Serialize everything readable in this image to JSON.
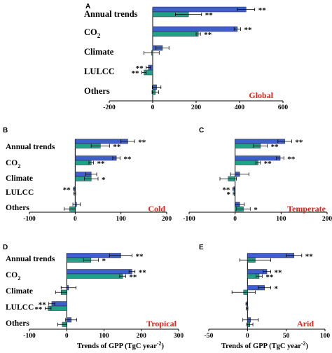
{
  "chart_data": [
    {
      "type": "bar",
      "panel_label": "A",
      "region": "Global",
      "categories": [
        "Annual trends",
        "CO2",
        "Climate",
        "LULCC",
        "Others"
      ],
      "series_colors": [
        "#3f5fcf",
        "#22a08a"
      ],
      "xlim": [
        -200,
        600
      ],
      "xticks": [
        "-200",
        "0",
        "200",
        "400",
        "600"
      ],
      "xlabel": "",
      "series": [
        {
          "values": [
            430,
            390,
            45,
            -20,
            18
          ],
          "err": [
            40,
            15,
            30,
            10,
            20
          ],
          "sig": [
            "**",
            "**",
            "",
            "**",
            ""
          ]
        },
        {
          "values": [
            165,
            210,
            -5,
            -40,
            12
          ],
          "err": [
            60,
            10,
            35,
            10,
            15
          ],
          "sig": [
            "**",
            "**",
            "",
            "**",
            ""
          ]
        }
      ]
    },
    {
      "type": "bar",
      "panel_label": "B",
      "region": "Cold",
      "categories": [
        "Annual trends",
        "CO2",
        "Climate",
        "LULCC",
        "Others"
      ],
      "series_colors": [
        "#3f5fcf",
        "#22a08a"
      ],
      "xlim": [
        -100,
        200
      ],
      "xticks": [
        "-100",
        "0",
        "100",
        "200"
      ],
      "xlabel": "",
      "series": [
        {
          "values": [
            115,
            90,
            35,
            -2,
            3
          ],
          "err": [
            15,
            8,
            12,
            2,
            8
          ],
          "sig": [
            "**",
            "**",
            "",
            "**",
            ""
          ]
        },
        {
          "values": [
            55,
            35,
            35,
            -1,
            -12
          ],
          "err": [
            20,
            5,
            15,
            2,
            12
          ],
          "sig": [
            "**",
            "**",
            "*",
            "",
            ""
          ]
        }
      ]
    },
    {
      "type": "bar",
      "panel_label": "C",
      "region": "Temperate",
      "categories": [
        "Annual trends",
        "CO2",
        "Climate",
        "LULCC",
        "Others"
      ],
      "series_colors": [
        "#3f5fcf",
        "#22a08a"
      ],
      "xlim": [
        -100,
        200
      ],
      "xticks": [
        "-100",
        "0",
        "100",
        "200"
      ],
      "xlabel": "",
      "series": [
        {
          "values": [
            108,
            98,
            10,
            -3,
            10
          ],
          "err": [
            15,
            8,
            20,
            2,
            10
          ],
          "sig": [
            "**",
            "**",
            "",
            "**",
            ""
          ]
        },
        {
          "values": [
            55,
            50,
            -15,
            -2,
            18
          ],
          "err": [
            15,
            5,
            18,
            2,
            15
          ],
          "sig": [
            "**",
            "**",
            "",
            "*",
            "*"
          ]
        }
      ]
    },
    {
      "type": "bar",
      "panel_label": "D",
      "region": "Tropical",
      "categories": [
        "Annual trends",
        "CO2",
        "Climate",
        "LULCC",
        "Others"
      ],
      "series_colors": [
        "#3f5fcf",
        "#22a08a"
      ],
      "xlim": [
        -100,
        300
      ],
      "xticks": [
        "-100",
        "0",
        "100",
        "200",
        "300"
      ],
      "xlabel": "Trends of GPP (TgC year⁻²)",
      "series": [
        {
          "values": [
            145,
            175,
            5,
            -40,
            12
          ],
          "err": [
            30,
            8,
            20,
            8,
            15
          ],
          "sig": [
            "**",
            "**",
            "",
            "**",
            ""
          ]
        },
        {
          "values": [
            65,
            150,
            -15,
            -50,
            -12
          ],
          "err": [
            20,
            8,
            15,
            8,
            12
          ],
          "sig": [
            "*",
            "**",
            "",
            "**",
            ""
          ]
        }
      ]
    },
    {
      "type": "bar",
      "panel_label": "E",
      "region": "Arid",
      "categories": [
        "Annual trends",
        "CO2",
        "Climate",
        "LULCC",
        "Others"
      ],
      "series_colors": [
        "#3f5fcf",
        "#22a08a"
      ],
      "xlim": [
        -50,
        100
      ],
      "xticks": [
        "-50",
        "0",
        "50",
        "100"
      ],
      "xlabel": "Trends of GPP (TgC year⁻²)",
      "series": [
        {
          "values": [
            60,
            25,
            22,
            -1,
            4
          ],
          "err": [
            10,
            5,
            8,
            1,
            10
          ],
          "sig": [
            "**",
            "**",
            "*",
            "",
            ""
          ]
        },
        {
          "values": [
            10,
            15,
            -5,
            -0.5,
            3
          ],
          "err": [
            20,
            4,
            15,
            1,
            4
          ],
          "sig": [
            "",
            "**",
            "",
            "",
            ""
          ]
        }
      ]
    }
  ]
}
